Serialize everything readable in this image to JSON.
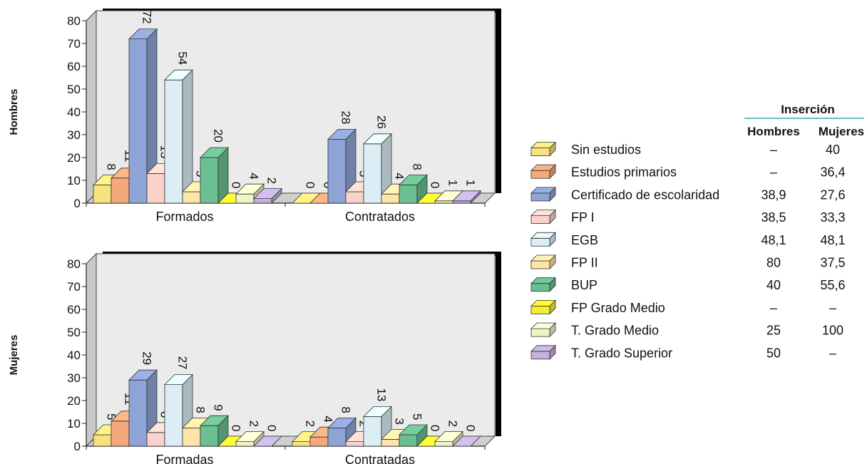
{
  "chart_data": [
    {
      "type": "bar",
      "row_label": "Hombres",
      "categories": [
        "Formados",
        "Contratados"
      ],
      "ylim": [
        0,
        80
      ],
      "yticks": [
        0,
        10,
        20,
        30,
        40,
        50,
        60,
        70,
        80
      ],
      "series": [
        {
          "name": "Sin estudios",
          "values": [
            8,
            0
          ]
        },
        {
          "name": "Estudios primarios",
          "values": [
            11,
            0
          ]
        },
        {
          "name": "Certificado de escolaridad",
          "values": [
            72,
            28
          ]
        },
        {
          "name": "FP I",
          "values": [
            13,
            5
          ]
        },
        {
          "name": "EGB",
          "values": [
            54,
            26
          ]
        },
        {
          "name": "FP II",
          "values": [
            5,
            4
          ]
        },
        {
          "name": "BUP",
          "values": [
            20,
            8
          ]
        },
        {
          "name": "FP Grado Medio",
          "values": [
            0,
            0
          ]
        },
        {
          "name": "T. Grado Medio",
          "values": [
            4,
            1
          ]
        },
        {
          "name": "T. Grado Superior",
          "values": [
            2,
            1
          ]
        }
      ]
    },
    {
      "type": "bar",
      "row_label": "Mujeres",
      "categories": [
        "Formadas",
        "Contratadas"
      ],
      "ylim": [
        0,
        80
      ],
      "yticks": [
        0,
        10,
        20,
        30,
        40,
        50,
        60,
        70,
        80
      ],
      "series": [
        {
          "name": "Sin estudios",
          "values": [
            5,
            2
          ]
        },
        {
          "name": "Estudios primarios",
          "values": [
            11,
            4
          ]
        },
        {
          "name": "Certificado de escolaridad",
          "values": [
            29,
            8
          ]
        },
        {
          "name": "FP I",
          "values": [
            6,
            2
          ]
        },
        {
          "name": "EGB",
          "values": [
            27,
            13
          ]
        },
        {
          "name": "FP II",
          "values": [
            8,
            3
          ]
        },
        {
          "name": "BUP",
          "values": [
            9,
            5
          ]
        },
        {
          "name": "FP Grado Medio",
          "values": [
            0,
            0
          ]
        },
        {
          "name": "T. Grado Medio",
          "values": [
            2,
            2
          ]
        },
        {
          "name": "T. Grado Superior",
          "values": [
            0,
            0
          ]
        }
      ]
    }
  ],
  "legend": [
    {
      "label": "Sin estudios",
      "color": "#f7e27d"
    },
    {
      "label": "Estudios primarios",
      "color": "#f5a97a"
    },
    {
      "label": "Certificado de escolaridad",
      "color": "#8fa4d6"
    },
    {
      "label": "FP I",
      "color": "#f9d3cb"
    },
    {
      "label": "EGB",
      "color": "#dbeef6"
    },
    {
      "label": "FP II",
      "color": "#fde4a8"
    },
    {
      "label": "BUP",
      "color": "#6bbf91"
    },
    {
      "label": "FP Grado Medio",
      "color": "#f6ef2f"
    },
    {
      "label": "T. Grado Medio",
      "color": "#eef3c8"
    },
    {
      "label": "T. Grado Superior",
      "color": "#c4b1dc"
    }
  ],
  "table": {
    "header": "Inserción",
    "columns": [
      "Hombres",
      "Mujeres"
    ],
    "rows": [
      [
        "–",
        "40"
      ],
      [
        "–",
        "36,4"
      ],
      [
        "38,9",
        "27,6"
      ],
      [
        "38,5",
        "33,3"
      ],
      [
        "48,1",
        "48,1"
      ],
      [
        "80",
        "37,5"
      ],
      [
        "40",
        "55,6"
      ],
      [
        "–",
        "–"
      ],
      [
        "25",
        "100"
      ],
      [
        "50",
        "–"
      ]
    ],
    "rule_color": "#3aa8b0"
  }
}
